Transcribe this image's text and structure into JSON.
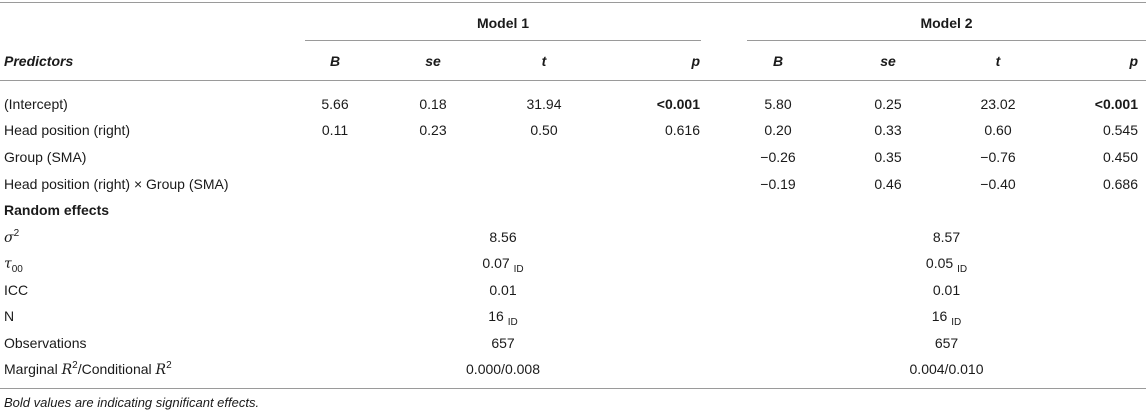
{
  "header": {
    "model1": "Model 1",
    "model2": "Model 2",
    "predictors": "Predictors",
    "columns": [
      "B",
      "se",
      "t",
      "p"
    ]
  },
  "rows": [
    {
      "label": "(Intercept)",
      "m1": [
        "5.66",
        "0.18",
        "31.94",
        "<0.001"
      ],
      "m2": [
        "5.80",
        "0.25",
        "23.02",
        "<0.001"
      ]
    },
    {
      "label": "Head position (right)",
      "m1": [
        "0.11",
        "0.23",
        "0.50",
        "0.616"
      ],
      "m2": [
        "0.20",
        "0.33",
        "0.60",
        "0.545"
      ]
    },
    {
      "label": "Group (SMA)",
      "m1": [
        "",
        "",
        "",
        ""
      ],
      "m2": [
        "−0.26",
        "0.35",
        "−0.76",
        "0.450"
      ]
    },
    {
      "label": "Head position (right) × Group (SMA)",
      "m1": [
        "",
        "",
        "",
        ""
      ],
      "m2": [
        "−0.19",
        "0.46",
        "−0.40",
        "0.686"
      ]
    }
  ],
  "random_effects": {
    "heading": "Random effects",
    "sigma": {
      "symbol": "σ",
      "sup": "2",
      "m1": "8.56",
      "m2": "8.57"
    },
    "tau": {
      "symbol": "τ",
      "sub": "00",
      "m1": "0.07",
      "m1_sub": "ID",
      "m2": "0.05",
      "m2_sub": "ID"
    },
    "icc": {
      "label": "ICC",
      "m1": "0.01",
      "m2": "0.01"
    },
    "n": {
      "label": "N",
      "m1": "16",
      "m1_sub": "ID",
      "m2": "16",
      "m2_sub": "ID"
    },
    "obs": {
      "label": "Observations",
      "m1": "657",
      "m2": "657"
    },
    "r2": {
      "label_a": "Marginal ",
      "r": "R",
      "sup": "2",
      "label_b": "/Conditional ",
      "m1": "0.000/0.008",
      "m2": "0.004/0.010"
    }
  },
  "note": "Bold values are indicating significant effects."
}
